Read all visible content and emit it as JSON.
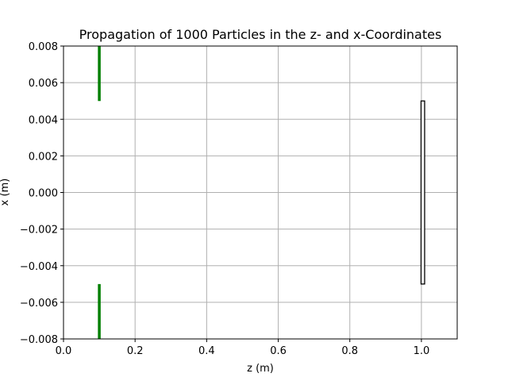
{
  "chart_data": {
    "type": "line",
    "title": "Propagation of 1000 Particles in the z- and x-Coordinates",
    "xlabel": "z (m)",
    "ylabel": "x (m)",
    "xlim": [
      0.0,
      1.1
    ],
    "ylim": [
      -0.008,
      0.008
    ],
    "grid": true,
    "x_ticks": [
      0.0,
      0.2,
      0.4,
      0.6,
      0.8,
      1.0
    ],
    "x_tick_labels": [
      "0.0",
      "0.2",
      "0.4",
      "0.6",
      "0.8",
      "1.0"
    ],
    "y_ticks": [
      -0.008,
      -0.006,
      -0.004,
      -0.002,
      0.0,
      0.002,
      0.004,
      0.006,
      0.008
    ],
    "y_tick_labels": [
      "−0.008",
      "−0.006",
      "−0.004",
      "−0.002",
      "0.000",
      "0.002",
      "0.004",
      "0.006",
      "0.008"
    ],
    "segments": [
      {
        "x": [
          0.1,
          0.1
        ],
        "y": [
          0.005,
          0.008
        ],
        "color": "#008000"
      },
      {
        "x": [
          0.1,
          0.1
        ],
        "y": [
          -0.008,
          -0.005
        ],
        "color": "#008000"
      }
    ],
    "rectangles": [
      {
        "x0": 0.999,
        "x1": 1.009,
        "y0": -0.005,
        "y1": 0.005,
        "fill": "#ffffff",
        "stroke": "#000000"
      }
    ]
  }
}
